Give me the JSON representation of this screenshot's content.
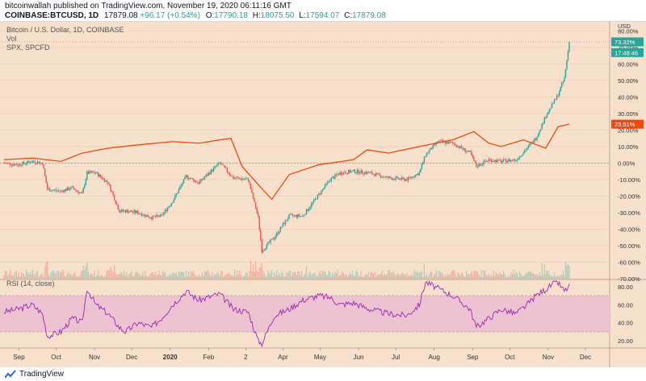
{
  "header": {
    "publisher_line": "bitcoinwallah published on TradingView.com, November 19, 2020 06:11:16 GMT",
    "symbol": "COINBASE:BTCUSD, 1D",
    "price": "17879.08",
    "change": "+96.17 (+0.54%)",
    "ohlc": [
      {
        "k": "O:",
        "v": "17790.18"
      },
      {
        "k": "H:",
        "v": "18075.50"
      },
      {
        "k": "L:",
        "v": "17594.07"
      },
      {
        "k": "C:",
        "v": "17879.08"
      }
    ]
  },
  "legend": {
    "title": "Bitcoin / U.S. Dollar, 1D, COINBASE",
    "vol": "Vol",
    "compare": "SPX, SPCFD"
  },
  "price_scale": {
    "currency": "USD",
    "btc_badge": "73.32%",
    "countdown_badge": "17:48:46",
    "spx_badge": "23.51%"
  },
  "rsi_label": "RSI (14, close)",
  "footer": {
    "brand": "TradingView"
  },
  "colors": {
    "background": "#f8e1cc",
    "bull": "#26a69a",
    "bear": "#ef5350",
    "spx": "#f0490f",
    "rsi_line": "#9c27b0",
    "rsi_band": "#e9b8d4"
  },
  "chart_data": [
    {
      "type": "line",
      "title": "Bitcoin / U.S. Dollar, 1D, COINBASE",
      "x_ticks": [
        "Sep",
        "Oct",
        "Nov",
        "Dec",
        "2020",
        "Feb",
        "2",
        "Apr",
        "May",
        "Jun",
        "Jul",
        "Aug",
        "Sep",
        "Oct",
        "Nov",
        "Dec"
      ],
      "y_ticks": [
        "USD",
        "80.00%",
        "70.00%",
        "60.00%",
        "50.00%",
        "40.00%",
        "30.00%",
        "20.00%",
        "10.00%",
        "0.00%",
        "-10.00%",
        "-20.00%",
        "-30.00%",
        "-40.00%",
        "-50.00%",
        "-60.00%",
        "-70.00%"
      ],
      "ylim": [
        -70,
        85
      ],
      "series": [
        {
          "name": "BTCUSD",
          "style": "candles",
          "date_step_days": 1,
          "x": [
            "2019-08-20",
            "2019-08-31",
            "2019-09-12",
            "2019-09-20",
            "2019-09-24",
            "2019-10-05",
            "2019-10-14",
            "2019-10-22",
            "2019-10-26",
            "2019-11-02",
            "2019-11-12",
            "2019-11-21",
            "2019-11-26",
            "2019-12-06",
            "2019-12-17",
            "2019-12-25",
            "2020-01-03",
            "2020-01-14",
            "2020-01-24",
            "2020-02-10",
            "2020-02-21",
            "2020-03-04",
            "2020-03-12",
            "2020-03-15",
            "2020-03-25",
            "2020-04-06",
            "2020-04-17",
            "2020-04-30",
            "2020-05-09",
            "2020-05-17",
            "2020-05-28",
            "2020-06-10",
            "2020-06-25",
            "2020-07-10",
            "2020-07-20",
            "2020-07-25",
            "2020-08-04",
            "2020-08-16",
            "2020-08-30",
            "2020-09-04",
            "2020-09-14",
            "2020-09-24",
            "2020-10-06",
            "2020-10-15",
            "2020-10-22",
            "2020-10-31",
            "2020-11-08",
            "2020-11-14",
            "2020-11-18"
          ],
          "y": [
            0,
            -1,
            1,
            0,
            -16,
            -17,
            -15,
            -19,
            -6,
            -6,
            -12,
            -29,
            -29,
            -30,
            -33,
            -32,
            -23,
            -8,
            -12,
            0,
            -9,
            -10,
            -33,
            -53,
            -45,
            -32,
            -32,
            -19,
            -10,
            -6,
            -5,
            -6,
            -9,
            -10,
            -6,
            5,
            13,
            12,
            6,
            -2,
            2,
            1,
            2,
            9,
            15,
            30,
            40,
            51,
            73.32
          ]
        },
        {
          "name": "SPX, SPCFD",
          "style": "line",
          "x": [
            "2019-08-20",
            "2019-09-12",
            "2019-10-05",
            "2019-10-22",
            "2019-11-12",
            "2019-12-06",
            "2020-01-03",
            "2020-01-24",
            "2020-02-19",
            "2020-02-28",
            "2020-03-12",
            "2020-03-23",
            "2020-04-06",
            "2020-04-30",
            "2020-05-28",
            "2020-06-08",
            "2020-06-25",
            "2020-07-20",
            "2020-08-16",
            "2020-09-02",
            "2020-09-14",
            "2020-09-24",
            "2020-10-12",
            "2020-10-30",
            "2020-11-09",
            "2020-11-18"
          ],
          "y": [
            2,
            3,
            1,
            6,
            9,
            11,
            13,
            12,
            15,
            -2,
            -13,
            -22,
            -7,
            -1,
            2,
            8,
            6,
            10,
            14,
            19,
            12,
            10,
            14,
            9,
            22,
            23.51
          ]
        }
      ]
    },
    {
      "type": "line",
      "title": "RSI (14, close)",
      "y_ticks": [
        "80.00",
        "60.00",
        "40.00",
        "20.00"
      ],
      "ylim": [
        13,
        87
      ],
      "bands": [
        30,
        70
      ],
      "series": [
        {
          "name": "RSI (14, close)",
          "x": [
            "2019-08-20",
            "2019-08-31",
            "2019-09-12",
            "2019-09-20",
            "2019-09-24",
            "2019-10-05",
            "2019-10-14",
            "2019-10-22",
            "2019-10-26",
            "2019-11-02",
            "2019-11-12",
            "2019-11-21",
            "2019-11-26",
            "2019-12-06",
            "2019-12-17",
            "2019-12-25",
            "2020-01-03",
            "2020-01-14",
            "2020-01-24",
            "2020-02-10",
            "2020-02-21",
            "2020-03-04",
            "2020-03-12",
            "2020-03-15",
            "2020-03-25",
            "2020-04-06",
            "2020-04-17",
            "2020-04-30",
            "2020-05-09",
            "2020-05-17",
            "2020-05-28",
            "2020-06-10",
            "2020-06-25",
            "2020-07-10",
            "2020-07-20",
            "2020-07-25",
            "2020-08-04",
            "2020-08-16",
            "2020-08-30",
            "2020-09-04",
            "2020-09-14",
            "2020-09-24",
            "2020-10-06",
            "2020-10-15",
            "2020-10-22",
            "2020-10-31",
            "2020-11-08",
            "2020-11-14",
            "2020-11-18"
          ],
          "y": [
            52,
            55,
            60,
            50,
            25,
            30,
            45,
            40,
            78,
            60,
            50,
            35,
            30,
            40,
            35,
            45,
            60,
            75,
            65,
            72,
            55,
            52,
            20,
            17,
            48,
            55,
            65,
            70,
            68,
            60,
            62,
            55,
            50,
            48,
            60,
            85,
            78,
            70,
            55,
            35,
            45,
            55,
            50,
            60,
            70,
            78,
            86,
            75,
            80
          ]
        }
      ]
    }
  ]
}
